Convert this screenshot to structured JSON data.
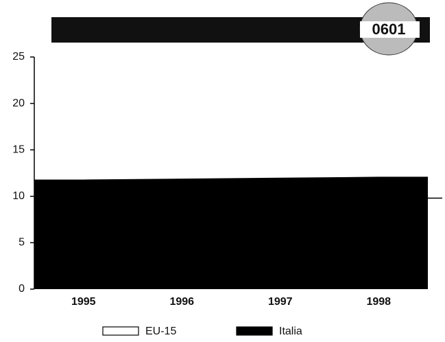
{
  "badge": "0601",
  "chart_data": {
    "type": "area",
    "categories": [
      "1995",
      "1996",
      "1997",
      "1998"
    ],
    "series": [
      {
        "name": "EU-15",
        "color": "#ffffff",
        "values": [
          10.8,
          10.6,
          10.2,
          9.8
        ]
      },
      {
        "name": "Italia",
        "color": "#000000",
        "values": [
          11.8,
          11.9,
          12.0,
          12.1
        ]
      }
    ],
    "ylim": [
      0,
      25
    ],
    "yticks": [
      0,
      5,
      10,
      15,
      20,
      25
    ]
  }
}
